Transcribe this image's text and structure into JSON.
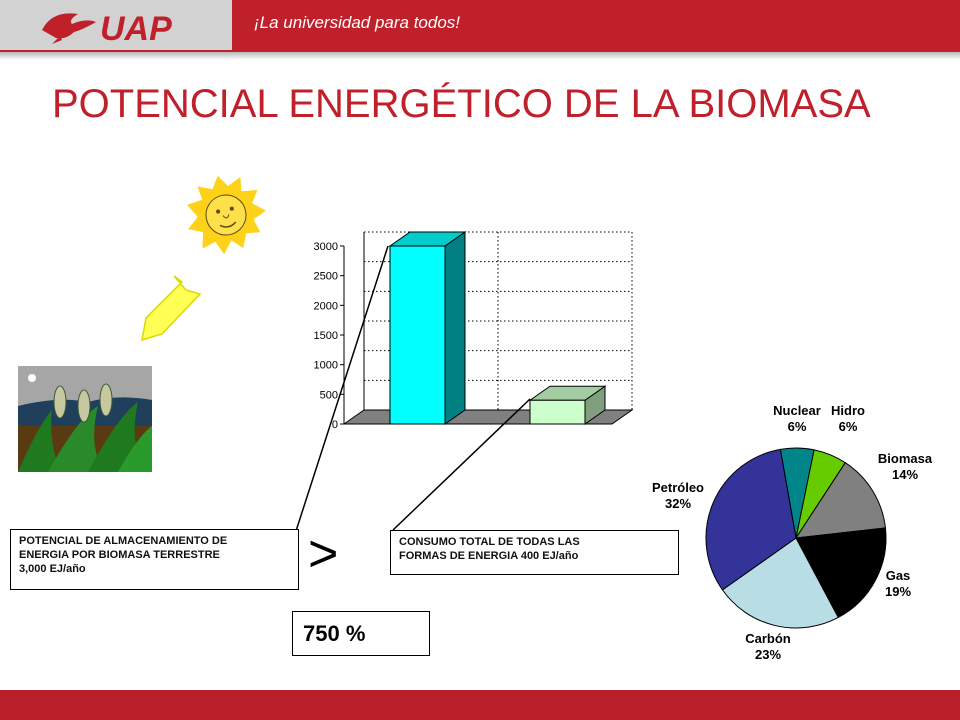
{
  "header": {
    "logo_text": "UAP",
    "tagline": "¡La universidad para todos!"
  },
  "title": "POTENCIAL ENERGÉTICO DE LA BIOMASA",
  "chart_data": [
    {
      "type": "bar",
      "categories": [
        "",
        ""
      ],
      "values": [
        3000,
        400
      ],
      "ylim": [
        0,
        3000
      ],
      "yticks": [
        0,
        500,
        1000,
        1500,
        2000,
        2500,
        3000
      ],
      "grid": true,
      "colors": [
        "#00ffff",
        "#ccffcc"
      ]
    },
    {
      "type": "pie",
      "slices": [
        {
          "name": "Nuclear",
          "value": 6,
          "label": "6%",
          "color": "#00868a"
        },
        {
          "name": "Hidro",
          "value": 6,
          "label": "6%",
          "color": "#66cc00"
        },
        {
          "name": "Biomasa",
          "value": 14,
          "label": "14%",
          "color": "#808080"
        },
        {
          "name": "Gas",
          "value": 19,
          "label": "19%",
          "color": "#000000"
        },
        {
          "name": "Carbón",
          "value": 23,
          "label": "23%",
          "color": "#b8dde4"
        },
        {
          "name": "Petróleo",
          "value": 32,
          "label": "32%",
          "color": "#333399"
        }
      ]
    }
  ],
  "storage_box": {
    "line1": "POTENCIAL DE ALMACENAMIENTO DE",
    "line2": "ENERGIA POR BIOMASA TERRESTRE",
    "line3": "3,000 EJ/año"
  },
  "consumption_box": {
    "line1": "CONSUMO TOTAL DE TODAS LAS",
    "line2": "FORMAS DE ENERGIA 400 EJ/año"
  },
  "comparison": {
    "symbol": ">",
    "percent": "750 %"
  },
  "icons": {
    "sun": "sun-icon",
    "arrow": "arrow-down-left-icon",
    "plants": "plants-clipart"
  },
  "colors": {
    "brand_red": "#c0202a"
  }
}
